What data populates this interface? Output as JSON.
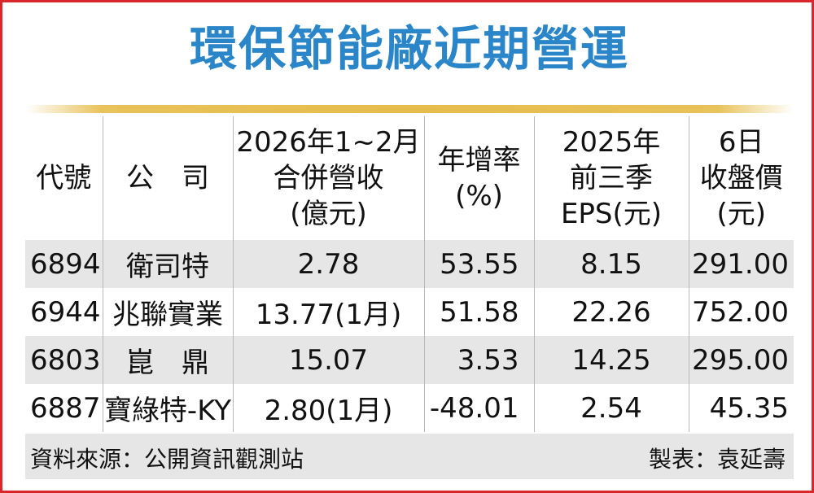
{
  "title": "環保節能廠近期營運",
  "table": {
    "headers": [
      [
        "代號"
      ],
      [
        "公　司"
      ],
      [
        "2026年1~2月",
        "合併營收",
        "(億元)"
      ],
      [
        "年增率",
        "(%)"
      ],
      [
        "2025年",
        "前三季",
        "EPS(元)"
      ],
      [
        "6日",
        "收盤價",
        "(元)"
      ]
    ],
    "rows": [
      {
        "code": "6894",
        "company": "衛司特",
        "revenue": "2.78",
        "yoy": "53.55",
        "eps": "8.15",
        "close": "291.00"
      },
      {
        "code": "6944",
        "company": "兆聯實業",
        "revenue": "13.77(1月)",
        "yoy": "51.58",
        "eps": "22.26",
        "close": "752.00"
      },
      {
        "code": "6803",
        "company": "崑　鼎",
        "revenue": "15.07",
        "yoy": "3.53",
        "eps": "14.25",
        "close": "295.00"
      },
      {
        "code": "6887",
        "company": "寶綠特-KY",
        "revenue": "2.80(1月)",
        "yoy": "-48.01",
        "eps": "2.54",
        "close": "45.35"
      }
    ]
  },
  "footer": {
    "source": "資料來源：公開資訊觀測站",
    "maker": "製表：袁延壽"
  },
  "colors": {
    "frame": "#d9262b",
    "title": "#2a86c9",
    "rule": "#e6bc4c",
    "row_shade": "#e6e6e6"
  }
}
